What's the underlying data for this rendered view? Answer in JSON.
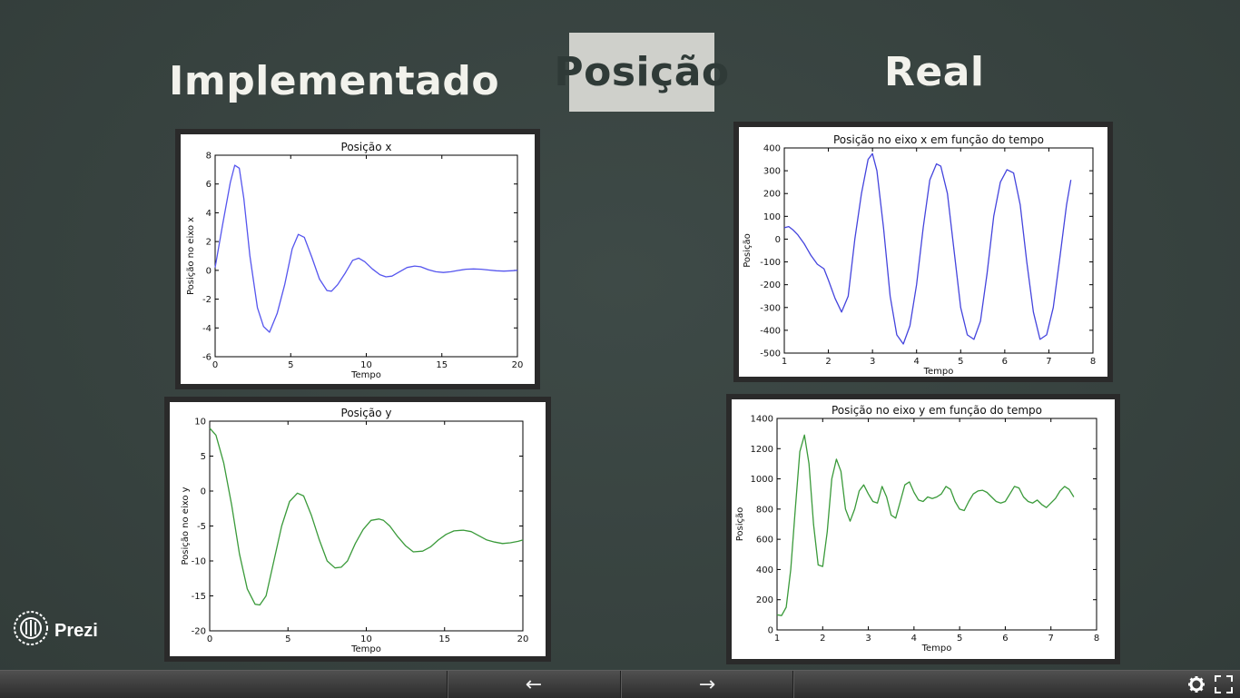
{
  "headings": {
    "left": "Implementado",
    "center": "Posição",
    "right": "Real"
  },
  "brand": {
    "name": "Prezi"
  },
  "nav": {
    "prev": "←",
    "next": "→"
  },
  "icons": {
    "prev": "arrow-left-icon",
    "next": "arrow-right-icon",
    "settings": "gear-icon",
    "fullscreen": "fullscreen-icon",
    "logo": "prezi-logo-icon"
  },
  "colors": {
    "background": "#37423f",
    "highlight": "#cfd0cb",
    "blue_series": "#5555ee",
    "green_series": "#3a9a3a"
  },
  "chart_data": [
    {
      "id": "impl_x",
      "type": "line",
      "title": "Posição x",
      "xlabel": "Tempo",
      "ylabel": "Posição no eixo x",
      "xlim": [
        0,
        20
      ],
      "ylim": [
        -6,
        8
      ],
      "xticks": [
        0,
        5,
        10,
        15,
        20
      ],
      "yticks": [
        -6,
        -4,
        -2,
        0,
        2,
        4,
        6,
        8
      ],
      "series": [
        {
          "color": "#5555ee",
          "x": [
            0,
            0.5,
            1.0,
            1.3,
            1.6,
            1.9,
            2.3,
            2.8,
            3.2,
            3.6,
            4.1,
            4.6,
            5.1,
            5.5,
            5.9,
            6.4,
            6.9,
            7.4,
            7.7,
            8.1,
            8.6,
            9.1,
            9.5,
            9.9,
            10.4,
            10.9,
            11.3,
            11.7,
            12.2,
            12.7,
            13.2,
            13.6,
            14.1,
            14.6,
            15.1,
            15.6,
            16.1,
            16.6,
            17.1,
            17.6,
            18.1,
            18.6,
            19.1,
            19.6,
            20
          ],
          "y": [
            0.2,
            3.2,
            6.1,
            7.3,
            7.1,
            5.0,
            1.0,
            -2.6,
            -3.9,
            -4.3,
            -3.0,
            -1.0,
            1.5,
            2.5,
            2.3,
            0.9,
            -0.6,
            -1.4,
            -1.45,
            -1.0,
            -0.2,
            0.7,
            0.85,
            0.6,
            0.1,
            -0.3,
            -0.45,
            -0.4,
            -0.1,
            0.2,
            0.3,
            0.25,
            0.05,
            -0.1,
            -0.15,
            -0.1,
            0.0,
            0.08,
            0.1,
            0.08,
            0.02,
            -0.03,
            -0.05,
            -0.03,
            0.0
          ]
        }
      ]
    },
    {
      "id": "impl_y",
      "type": "line",
      "title": "Posição y",
      "xlabel": "Tempo",
      "ylabel": "Posição no eixo y",
      "xlim": [
        0,
        20
      ],
      "ylim": [
        -20,
        10
      ],
      "xticks": [
        0,
        5,
        10,
        15,
        20
      ],
      "yticks": [
        -20,
        -15,
        -10,
        -5,
        0,
        5,
        10
      ],
      "series": [
        {
          "color": "#3a9a3a",
          "x": [
            0,
            0.4,
            0.9,
            1.4,
            1.9,
            2.4,
            2.9,
            3.2,
            3.6,
            4.1,
            4.6,
            5.1,
            5.6,
            6.0,
            6.5,
            7.0,
            7.5,
            8.0,
            8.4,
            8.8,
            9.3,
            9.8,
            10.3,
            10.8,
            11.1,
            11.5,
            12.0,
            12.5,
            13.0,
            13.6,
            14.1,
            14.6,
            15.1,
            15.6,
            16.2,
            16.7,
            17.2,
            17.7,
            18.2,
            18.7,
            19.2,
            19.7,
            20
          ],
          "y": [
            9.0,
            8.0,
            4.0,
            -2.0,
            -9.0,
            -14.0,
            -16.2,
            -16.3,
            -15.0,
            -10.0,
            -5.0,
            -1.5,
            -0.3,
            -0.7,
            -3.5,
            -7.0,
            -10.0,
            -11.0,
            -10.9,
            -10.0,
            -7.5,
            -5.5,
            -4.2,
            -4.0,
            -4.2,
            -5.0,
            -6.5,
            -7.8,
            -8.7,
            -8.6,
            -8.0,
            -7.0,
            -6.2,
            -5.7,
            -5.6,
            -5.8,
            -6.4,
            -7.0,
            -7.3,
            -7.5,
            -7.4,
            -7.2,
            -7.0
          ]
        }
      ]
    },
    {
      "id": "real_x",
      "type": "line",
      "title": "Posição no eixo x em função do tempo",
      "xlabel": "Tempo",
      "ylabel": "Posição",
      "xlim": [
        1,
        8
      ],
      "ylim": [
        -500,
        400
      ],
      "xticks": [
        1,
        2,
        3,
        4,
        5,
        6,
        7,
        8
      ],
      "yticks": [
        -500,
        -400,
        -300,
        -200,
        -100,
        0,
        100,
        200,
        300,
        400
      ],
      "series": [
        {
          "color": "#4444dd",
          "x": [
            1.0,
            1.1,
            1.2,
            1.3,
            1.45,
            1.6,
            1.75,
            1.9,
            2.0,
            2.15,
            2.3,
            2.45,
            2.6,
            2.75,
            2.9,
            3.0,
            3.1,
            3.25,
            3.4,
            3.55,
            3.7,
            3.85,
            4.0,
            4.15,
            4.3,
            4.45,
            4.55,
            4.7,
            4.85,
            5.0,
            5.15,
            5.3,
            5.45,
            5.6,
            5.75,
            5.9,
            6.05,
            6.2,
            6.35,
            6.5,
            6.65,
            6.8,
            6.95,
            7.1,
            7.25,
            7.4,
            7.5
          ],
          "y": [
            50,
            55,
            40,
            20,
            -20,
            -70,
            -110,
            -130,
            -180,
            -260,
            -320,
            -250,
            0,
            200,
            350,
            375,
            300,
            50,
            -250,
            -420,
            -460,
            -380,
            -200,
            50,
            260,
            330,
            320,
            200,
            -50,
            -300,
            -420,
            -440,
            -360,
            -150,
            100,
            250,
            305,
            290,
            150,
            -100,
            -320,
            -440,
            -420,
            -300,
            -80,
            150,
            260
          ]
        }
      ]
    },
    {
      "id": "real_y",
      "type": "line",
      "title": "Posição no eixo y em função do tempo",
      "xlabel": "Tempo",
      "ylabel": "Posição",
      "xlim": [
        1,
        8
      ],
      "ylim": [
        0,
        1400
      ],
      "xticks": [
        1,
        2,
        3,
        4,
        5,
        6,
        7,
        8
      ],
      "yticks": [
        0,
        200,
        400,
        600,
        800,
        1000,
        1200,
        1400
      ],
      "series": [
        {
          "color": "#3a9a3a",
          "x": [
            1.0,
            1.1,
            1.2,
            1.3,
            1.4,
            1.5,
            1.6,
            1.7,
            1.8,
            1.9,
            2.0,
            2.1,
            2.2,
            2.3,
            2.4,
            2.5,
            2.6,
            2.7,
            2.8,
            2.9,
            3.0,
            3.1,
            3.2,
            3.3,
            3.4,
            3.5,
            3.6,
            3.7,
            3.8,
            3.9,
            4.0,
            4.1,
            4.2,
            4.3,
            4.4,
            4.5,
            4.6,
            4.7,
            4.8,
            4.9,
            5.0,
            5.1,
            5.2,
            5.3,
            5.4,
            5.5,
            5.6,
            5.7,
            5.8,
            5.9,
            6.0,
            6.1,
            6.2,
            6.3,
            6.4,
            6.5,
            6.6,
            6.7,
            6.8,
            6.9,
            7.0,
            7.1,
            7.2,
            7.3,
            7.4,
            7.5
          ],
          "y": [
            100,
            95,
            150,
            400,
            800,
            1180,
            1290,
            1100,
            700,
            430,
            420,
            650,
            1000,
            1130,
            1050,
            800,
            720,
            800,
            920,
            960,
            900,
            850,
            840,
            950,
            880,
            760,
            740,
            850,
            960,
            980,
            910,
            860,
            850,
            880,
            870,
            880,
            900,
            950,
            930,
            850,
            800,
            790,
            850,
            900,
            920,
            925,
            910,
            880,
            850,
            840,
            850,
            900,
            950,
            940,
            880,
            850,
            840,
            860,
            830,
            810,
            840,
            870,
            920,
            950,
            930,
            880
          ]
        }
      ]
    }
  ]
}
